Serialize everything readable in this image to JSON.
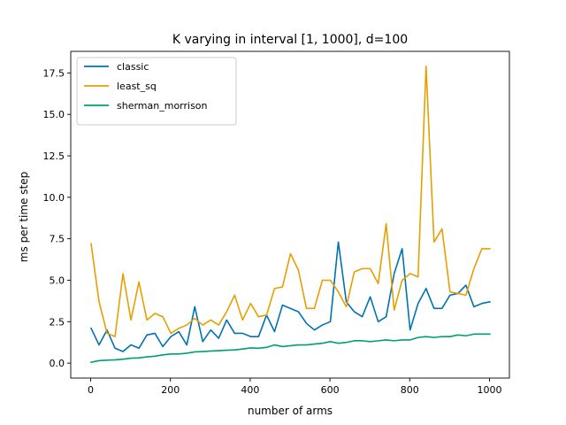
{
  "chart_data": {
    "type": "line",
    "title": "K varying in interval [1, 1000], d=100",
    "xlabel": "number of arms",
    "ylabel": "ms per time step",
    "xlim": [
      -50,
      1050
    ],
    "ylim": [
      -0.9,
      18.8
    ],
    "xticks": [
      0,
      200,
      400,
      600,
      800,
      1000
    ],
    "xtick_labels": [
      "0",
      "200",
      "400",
      "600",
      "800",
      "1000"
    ],
    "yticks": [
      0.0,
      2.5,
      5.0,
      7.5,
      10.0,
      12.5,
      15.0,
      17.5
    ],
    "ytick_labels": [
      "0.0",
      "2.5",
      "5.0",
      "7.5",
      "10.0",
      "12.5",
      "15.0",
      "17.5"
    ],
    "grid": false,
    "legend_position": "upper-left",
    "x": [
      1,
      21,
      41,
      61,
      81,
      101,
      121,
      141,
      161,
      181,
      201,
      221,
      241,
      261,
      281,
      301,
      321,
      341,
      361,
      381,
      401,
      421,
      441,
      461,
      481,
      501,
      521,
      541,
      561,
      581,
      601,
      621,
      641,
      661,
      681,
      701,
      721,
      741,
      761,
      781,
      801,
      821,
      841,
      861,
      881,
      901,
      921,
      941,
      961,
      981,
      1001
    ],
    "series": [
      {
        "name": "classic",
        "color": "#0072b2",
        "values": [
          2.1,
          1.1,
          2.0,
          0.9,
          0.7,
          1.1,
          0.9,
          1.7,
          1.8,
          1.0,
          1.6,
          1.9,
          1.1,
          3.4,
          1.3,
          2.0,
          1.5,
          2.6,
          1.8,
          1.8,
          1.6,
          1.6,
          2.9,
          1.9,
          3.5,
          3.3,
          3.1,
          2.4,
          2.0,
          2.3,
          2.5,
          7.3,
          3.7,
          3.1,
          2.8,
          4.0,
          2.5,
          2.8,
          5.4,
          6.9,
          2.0,
          3.6,
          4.5,
          3.3,
          3.3,
          4.1,
          4.2,
          4.7,
          3.4,
          3.6,
          3.7
        ]
      },
      {
        "name": "least_sq",
        "color": "#e69f00",
        "values": [
          7.2,
          3.7,
          1.8,
          1.6,
          5.4,
          2.6,
          4.9,
          2.6,
          3.0,
          2.8,
          1.8,
          2.1,
          2.3,
          2.7,
          2.3,
          2.6,
          2.3,
          3.1,
          4.1,
          2.6,
          3.6,
          2.8,
          2.9,
          4.5,
          4.6,
          6.6,
          5.6,
          3.3,
          3.3,
          5.0,
          5.0,
          4.3,
          3.4,
          5.5,
          5.7,
          5.7,
          4.8,
          8.4,
          3.2,
          5.0,
          5.4,
          5.2,
          17.9,
          7.3,
          8.1,
          4.3,
          4.2,
          4.1,
          5.7,
          6.9,
          6.9
        ]
      },
      {
        "name": "sherman_morrison",
        "color": "#009e73",
        "values": [
          0.05,
          0.15,
          0.18,
          0.2,
          0.24,
          0.3,
          0.32,
          0.38,
          0.42,
          0.5,
          0.55,
          0.55,
          0.6,
          0.68,
          0.7,
          0.73,
          0.75,
          0.78,
          0.8,
          0.85,
          0.92,
          0.9,
          0.95,
          1.1,
          1.0,
          1.05,
          1.1,
          1.1,
          1.15,
          1.2,
          1.3,
          1.2,
          1.25,
          1.35,
          1.35,
          1.3,
          1.35,
          1.4,
          1.35,
          1.4,
          1.4,
          1.55,
          1.6,
          1.55,
          1.6,
          1.6,
          1.7,
          1.65,
          1.75,
          1.75,
          1.75
        ]
      }
    ]
  }
}
